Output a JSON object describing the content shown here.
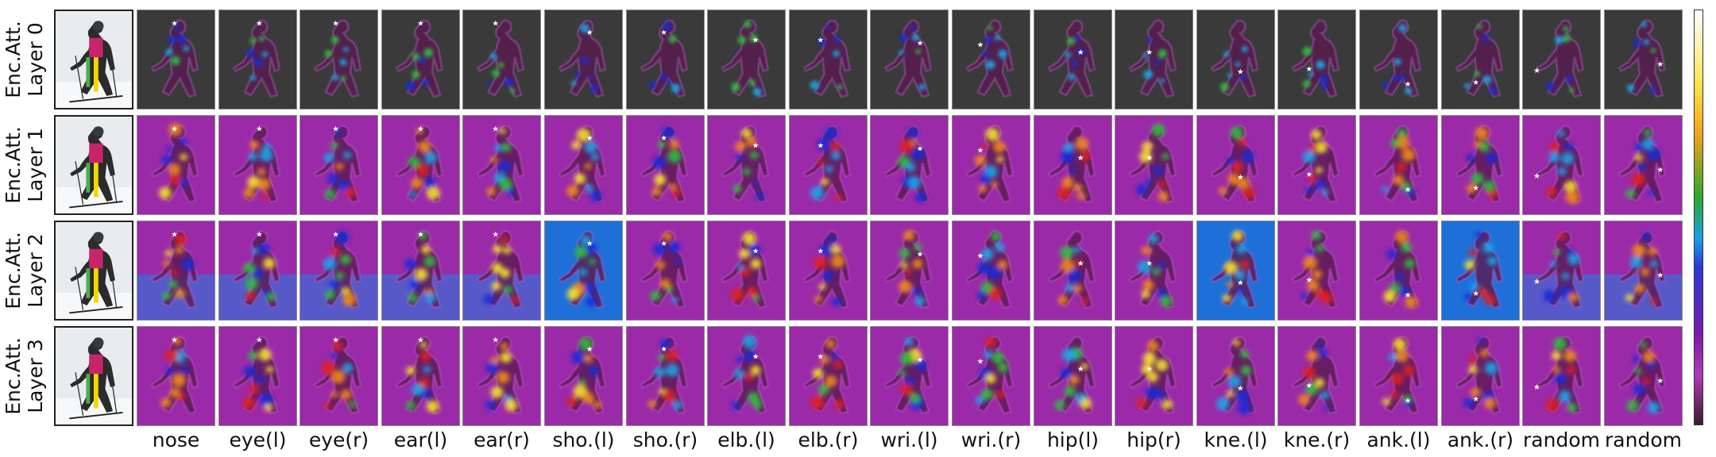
{
  "figure": {
    "row_labels": [
      [
        "Enc.Att.",
        "Layer 0"
      ],
      [
        "Enc.Att.",
        "Layer 1"
      ],
      [
        "Enc.Att.",
        "Layer 2"
      ],
      [
        "Enc.Att.",
        "Layer 3"
      ]
    ],
    "column_labels": [
      "nose",
      "eye(l)",
      "eye(r)",
      "ear(l)",
      "ear(r)",
      "sho.(l)",
      "sho.(r)",
      "elb.(l)",
      "elb.(r)",
      "wri.(l)",
      "wri.(r)",
      "hip(l)",
      "hip(r)",
      "kne.(l)",
      "kne.(r)",
      "ank.(l)",
      "ank.(r)",
      "random",
      "random"
    ],
    "colorbar_colors": [
      "#ffffff",
      "#ffe34a",
      "#f2a21a",
      "#2ea82e",
      "#1aa0e6",
      "#2a3ad8",
      "#7a1aa8",
      "#b03ab8",
      "#3a1a2a"
    ],
    "colors": {
      "background_magenta": "#9b2aa8",
      "dark_background": "#3a3a3a",
      "marker": "#ffffff"
    }
  }
}
